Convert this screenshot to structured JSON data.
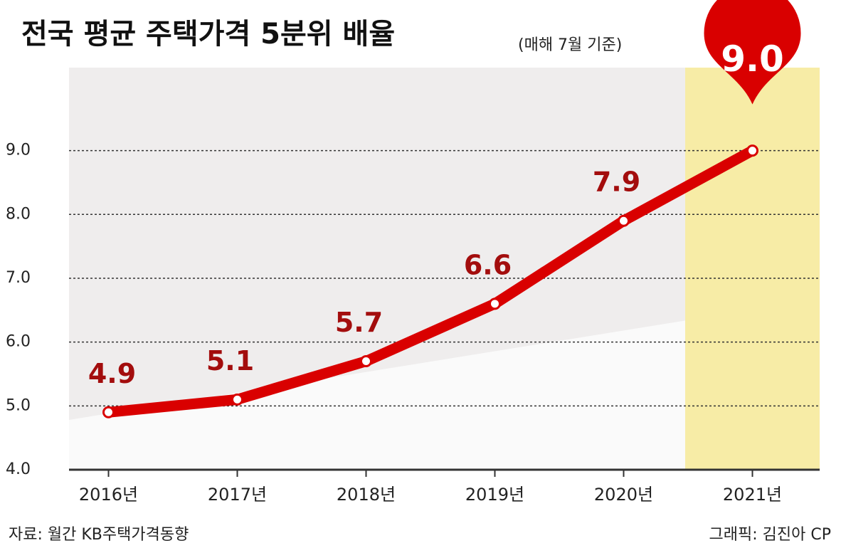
{
  "chart_data": {
    "type": "line",
    "title": "전국 평균 주택가격 5분위 배율",
    "subtitle": "(매해 7월 기준)",
    "categories": [
      "2016년",
      "2017년",
      "2018년",
      "2019년",
      "2020년",
      "2021년"
    ],
    "values": [
      4.9,
      5.1,
      5.7,
      6.6,
      7.9,
      9.0
    ],
    "value_labels": [
      "4.9",
      "5.1",
      "5.7",
      "6.6",
      "7.9",
      "9.0"
    ],
    "color": "#d90000",
    "ylim": [
      4,
      10.3
    ],
    "yticks": [
      {
        "value": 4,
        "label": "4.0"
      },
      {
        "value": 5,
        "label": "5.0"
      },
      {
        "value": 6,
        "label": "6.0"
      },
      {
        "value": 7,
        "label": "7.0"
      },
      {
        "value": 8,
        "label": "8.0"
      },
      {
        "value": 9,
        "label": "9.0"
      }
    ],
    "grid": true,
    "source": "자료: 월간 KB주택가격동향",
    "credit": "그래픽: 김진아 CP"
  }
}
